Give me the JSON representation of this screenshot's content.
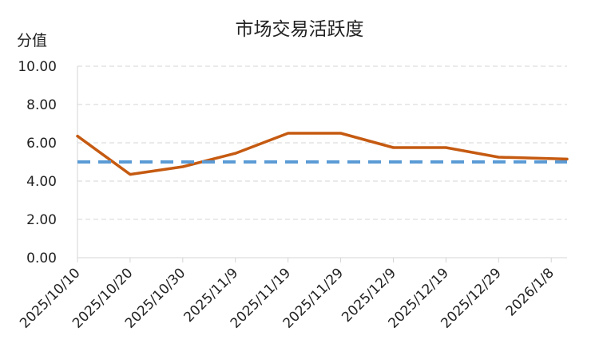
{
  "chart_data": {
    "type": "line",
    "title": "市场交易活跃度",
    "ylabel": "分值",
    "xlabel": "",
    "ylim": [
      0,
      10
    ],
    "y_ticks": [
      "0.00",
      "2.00",
      "4.00",
      "6.00",
      "8.00",
      "10.00"
    ],
    "x_tick_labels": [
      "2025/10/10",
      "2025/10/20",
      "2025/10/30",
      "2025/11/9",
      "2025/11/19",
      "2025/11/29",
      "2025/12/9",
      "2025/12/19",
      "2025/12/29",
      "2026/1/8"
    ],
    "x_range": [
      "2025/10/10",
      "2026/1/11"
    ],
    "grid": true,
    "legend": "none",
    "series": [
      {
        "style": "solid",
        "color": "#C55A11",
        "points": [
          {
            "x": "2025/10/10",
            "y": 6.35
          },
          {
            "x": "2025/10/20",
            "y": 4.35
          },
          {
            "x": "2025/10/30",
            "y": 4.75
          },
          {
            "x": "2025/11/9",
            "y": 5.45
          },
          {
            "x": "2025/11/19",
            "y": 6.5
          },
          {
            "x": "2025/11/29",
            "y": 6.5
          },
          {
            "x": "2025/12/9",
            "y": 5.75
          },
          {
            "x": "2025/12/19",
            "y": 5.75
          },
          {
            "x": "2025/12/29",
            "y": 5.25
          },
          {
            "x": "2026/1/11",
            "y": 5.15
          }
        ]
      },
      {
        "style": "dashed",
        "color": "#5B9BD5",
        "points": [
          {
            "x": "2025/10/10",
            "y": 5.0
          },
          {
            "x": "2026/1/11",
            "y": 5.0
          }
        ]
      }
    ]
  }
}
